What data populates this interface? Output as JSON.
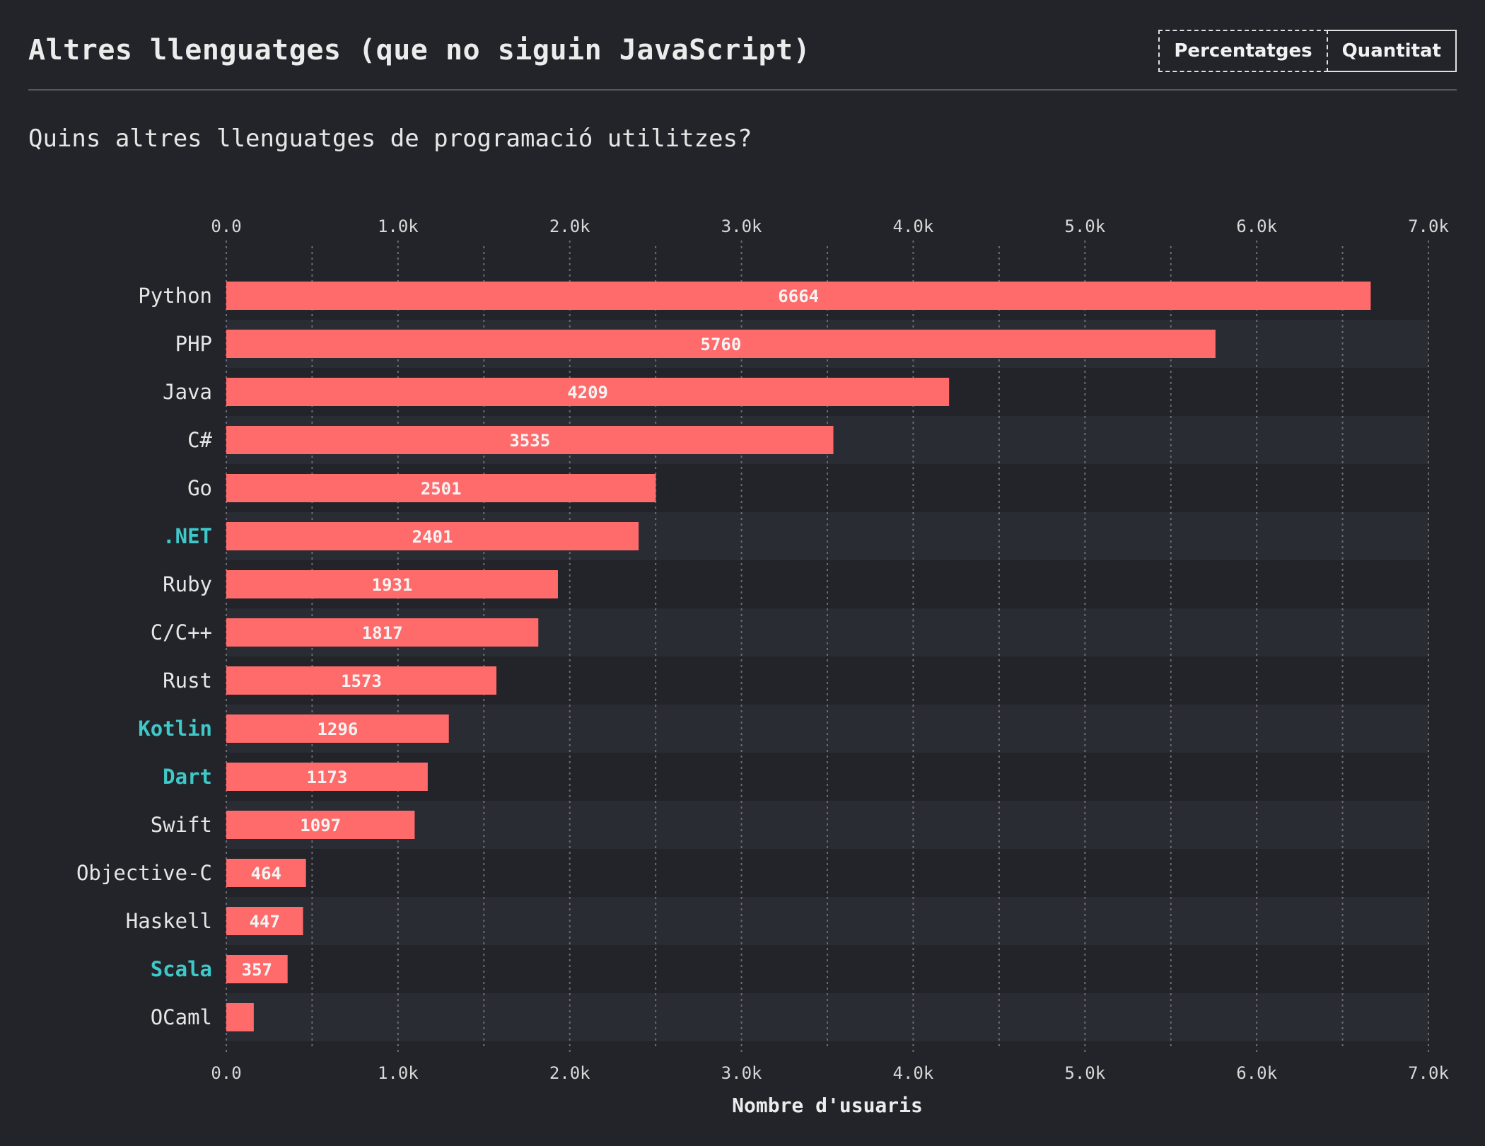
{
  "header": {
    "title": "Altres llenguatges (que no siguin JavaScript)",
    "toggle": {
      "percent_label": "Percentatges",
      "count_label": "Quantitat"
    }
  },
  "question": "Quins altres llenguatges de programació utilitzes?",
  "colors": {
    "bar": "#ff6b6b",
    "highlight_label": "#3ec8c8",
    "label": "#e6e6e6",
    "stripe": "#2a2c33"
  },
  "chart_data": {
    "type": "bar",
    "orientation": "horizontal",
    "categories": [
      "Python",
      "PHP",
      "Java",
      "C#",
      "Go",
      ".NET",
      "Ruby",
      "C/C++",
      "Rust",
      "Kotlin",
      "Dart",
      "Swift",
      "Objective-C",
      "Haskell",
      "Scala",
      "OCaml"
    ],
    "values": [
      6664,
      5760,
      4209,
      3535,
      2501,
      2401,
      1931,
      1817,
      1573,
      1296,
      1173,
      1097,
      464,
      447,
      357,
      160
    ],
    "value_labels": [
      "6664",
      "5760",
      "4209",
      "3535",
      "2501",
      "2401",
      "1931",
      "1817",
      "1573",
      "1296",
      "1173",
      "1097",
      "464",
      "447",
      "357",
      ""
    ],
    "highlighted": [
      ".NET",
      "Kotlin",
      "Dart",
      "Scala"
    ],
    "xlabel": "Nombre d'usuaris",
    "ylabel": "",
    "xlim": [
      0,
      7000
    ],
    "xticks": [
      0,
      1000,
      2000,
      3000,
      4000,
      5000,
      6000,
      7000
    ],
    "xtick_labels": [
      "0.0",
      "1.0k",
      "2.0k",
      "3.0k",
      "4.0k",
      "5.0k",
      "6.0k",
      "7.0k"
    ],
    "grid": true
  }
}
